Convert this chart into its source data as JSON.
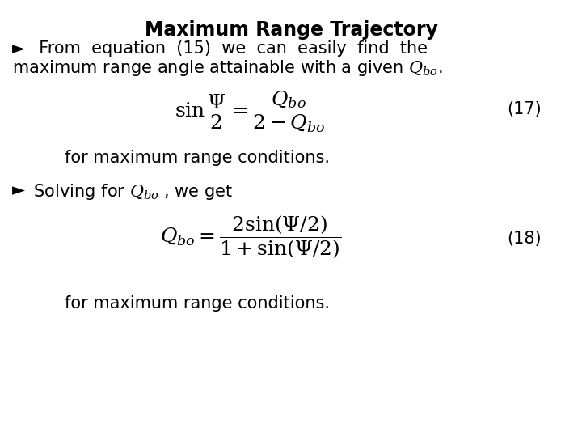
{
  "title": "Maximum Range Trajectory",
  "title_fontsize": 17,
  "background_color": "#ffffff",
  "text_color": "#000000",
  "bullet": "►",
  "para1_line1": "  From  equation  (15)  we  can  easily  find  the",
  "para1_line2": "maximum range angle attainable with a given $Q_{bo}$.",
  "eq17": "$\\sin\\dfrac{\\Psi}{2} = \\dfrac{Q_{bo}}{2-Q_{bo}}$",
  "eq17_label": "(17)",
  "eq17_note": "for maximum range conditions.",
  "para2_text": " Solving for $Q_{bo}$ , we get",
  "eq18": "$Q_{bo} = \\dfrac{2\\sin(\\Psi/2)}{1+\\sin(\\Psi/2)}$",
  "eq18_label": "(18)",
  "eq18_note": "for maximum range conditions.",
  "body_fontsize": 15,
  "eq_fontsize": 15
}
